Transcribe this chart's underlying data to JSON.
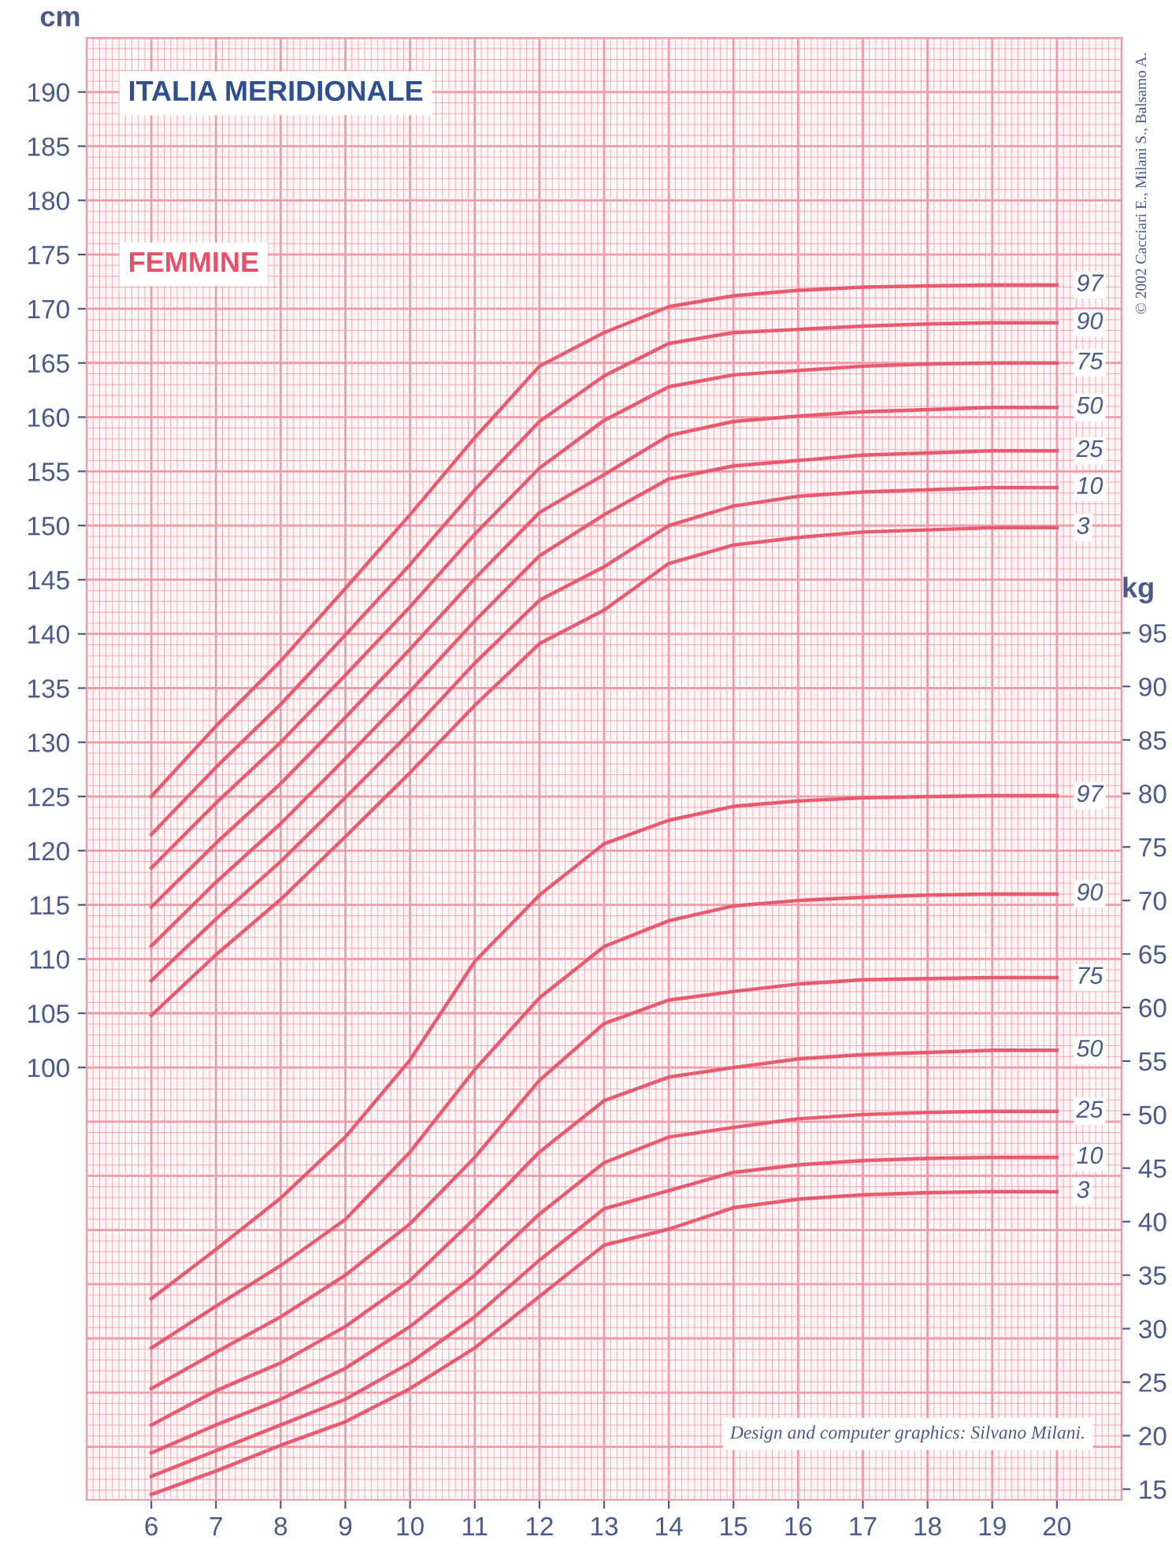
{
  "chart_data": {
    "type": "line",
    "title": "ITALIA MERIDIONALE",
    "subtitle": "FEMMINE",
    "ylabel": "cm",
    "y2label": "kg",
    "x": [
      6,
      7,
      8,
      9,
      10,
      11,
      12,
      13,
      14,
      15,
      16,
      17,
      18,
      19,
      20
    ],
    "xlim": [
      5,
      21
    ],
    "xticks": [
      6,
      7,
      8,
      9,
      10,
      11,
      12,
      13,
      14,
      15,
      16,
      17,
      18,
      19,
      20
    ],
    "ylim": [
      60.1,
      195
    ],
    "yticks": [
      100,
      105,
      110,
      115,
      120,
      125,
      130,
      135,
      140,
      145,
      150,
      155,
      160,
      165,
      170,
      175,
      180,
      185,
      190
    ],
    "y2lim": [
      14.0,
      150.6
    ],
    "y2ticks": [
      15,
      20,
      25,
      30,
      35,
      40,
      45,
      50,
      55,
      60,
      65,
      70,
      75,
      80,
      85,
      90,
      95
    ],
    "grid": true,
    "legend": false,
    "line_style": "solid",
    "marker": "none",
    "series": [
      {
        "name": "97",
        "color": "#ea5a6e",
        "values": [
          125.0,
          131.5,
          137.5,
          144.2,
          151.0,
          158.1,
          164.7,
          167.8,
          170.2,
          171.2,
          171.7,
          172.0,
          172.1,
          172.2,
          172.2
        ]
      },
      {
        "name": "90",
        "color": "#ea5a6e",
        "values": [
          121.5,
          127.7,
          133.5,
          139.9,
          146.4,
          153.3,
          159.6,
          163.8,
          166.8,
          167.8,
          168.1,
          168.4,
          168.6,
          168.7,
          168.7
        ]
      },
      {
        "name": "75",
        "color": "#ea5a6e",
        "values": [
          118.4,
          124.4,
          130.0,
          136.2,
          142.5,
          149.2,
          155.3,
          159.7,
          162.8,
          163.9,
          164.3,
          164.7,
          164.9,
          165.0,
          165.0
        ]
      },
      {
        "name": "50",
        "color": "#ea5a6e",
        "values": [
          114.8,
          120.7,
          126.2,
          132.3,
          138.6,
          145.1,
          151.2,
          154.7,
          158.3,
          159.6,
          160.1,
          160.5,
          160.7,
          160.9,
          160.9
        ]
      },
      {
        "name": "25",
        "color": "#ea5a6e",
        "values": [
          111.2,
          117.1,
          122.5,
          128.5,
          134.7,
          141.2,
          147.2,
          151.0,
          154.3,
          155.5,
          156.0,
          156.5,
          156.7,
          156.9,
          156.9
        ]
      },
      {
        "name": "10",
        "color": "#ea5a6e",
        "values": [
          108.0,
          113.7,
          119.0,
          124.9,
          130.9,
          137.3,
          143.1,
          146.2,
          150.0,
          151.8,
          152.7,
          153.1,
          153.3,
          153.5,
          153.5
        ]
      },
      {
        "name": "3",
        "color": "#ea5a6e",
        "values": [
          104.8,
          110.4,
          115.5,
          121.3,
          127.2,
          133.4,
          139.1,
          142.2,
          146.5,
          148.2,
          148.9,
          149.4,
          149.6,
          149.8,
          149.8
        ]
      },
      {
        "name": "97",
        "color": "#ea5a6e",
        "axis": "y2",
        "values": [
          32.8,
          37.4,
          42.2,
          47.9,
          55.1,
          64.3,
          70.5,
          75.3,
          77.5,
          78.8,
          79.3,
          79.6,
          79.7,
          79.8,
          79.8
        ]
      },
      {
        "name": "90",
        "color": "#ea5a6e",
        "axis": "y2",
        "values": [
          28.2,
          32.1,
          35.9,
          40.2,
          46.5,
          54.2,
          60.9,
          65.7,
          68.1,
          69.5,
          70.0,
          70.3,
          70.5,
          70.6,
          70.6
        ]
      },
      {
        "name": "75",
        "color": "#ea5a6e",
        "axis": "y2",
        "values": [
          24.4,
          27.8,
          31.1,
          35.0,
          39.8,
          46.0,
          53.2,
          58.5,
          60.7,
          61.5,
          62.2,
          62.6,
          62.7,
          62.8,
          62.8
        ]
      },
      {
        "name": "50",
        "color": "#ea5a6e",
        "axis": "y2",
        "values": [
          21.0,
          24.2,
          26.8,
          30.2,
          34.5,
          40.3,
          46.5,
          51.3,
          53.5,
          54.4,
          55.2,
          55.6,
          55.8,
          56.0,
          56.0
        ]
      },
      {
        "name": "25",
        "color": "#ea5a6e",
        "axis": "y2",
        "values": [
          18.4,
          21.0,
          23.4,
          26.3,
          30.2,
          35.0,
          40.7,
          45.5,
          47.9,
          48.8,
          49.6,
          50.0,
          50.2,
          50.3,
          50.3
        ]
      },
      {
        "name": "10",
        "color": "#ea5a6e",
        "axis": "y2",
        "values": [
          16.2,
          18.6,
          21.0,
          23.4,
          26.8,
          31.1,
          36.4,
          41.2,
          42.9,
          44.6,
          45.3,
          45.7,
          45.9,
          46.0,
          46.0
        ]
      },
      {
        "name": "3",
        "color": "#ea5a6e",
        "axis": "y2",
        "values": [
          14.5,
          16.7,
          19.1,
          21.3,
          24.4,
          28.2,
          33.0,
          37.8,
          39.3,
          41.3,
          42.1,
          42.5,
          42.7,
          42.8,
          42.8
        ]
      }
    ],
    "annotations": [
      "© 2002 Cacciari E., Milani S., Balsamo A.",
      "Design and computer graphics: Silvano Milani."
    ]
  }
}
